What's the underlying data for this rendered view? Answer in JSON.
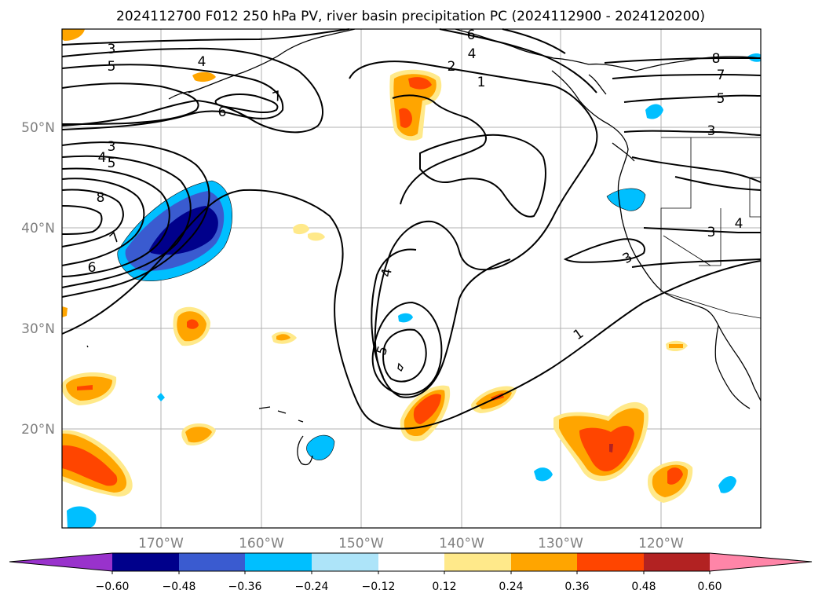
{
  "title": "2024112700 F012 250 hPa PV, river basin precipitation PC (2024112900 - 2024120200)",
  "map": {
    "lon_ticks": [
      "170°W",
      "160°W",
      "150°W",
      "140°W",
      "130°W",
      "120°W"
    ],
    "lat_ticks": [
      "50°N",
      "40°N",
      "30°N",
      "20°N"
    ],
    "contour_labels": [
      "1",
      "2",
      "3",
      "4",
      "5",
      "6",
      "7",
      "8"
    ]
  },
  "colorbar": {
    "ticks": [
      "−0.60",
      "−0.48",
      "−0.36",
      "−0.24",
      "−0.12",
      "0.12",
      "0.24",
      "0.36",
      "0.48",
      "0.60"
    ],
    "colors": {
      "under": "#9932cc",
      "c1": "#00008b",
      "c2": "#3a5bd0",
      "c3": "#00bfff",
      "c4": "#ade4f9",
      "c5": "#ffffff",
      "c6": "#ffe98a",
      "c7": "#ffa500",
      "c8": "#ff4500",
      "c9": "#b22222",
      "over": "#ff85a8"
    }
  }
}
